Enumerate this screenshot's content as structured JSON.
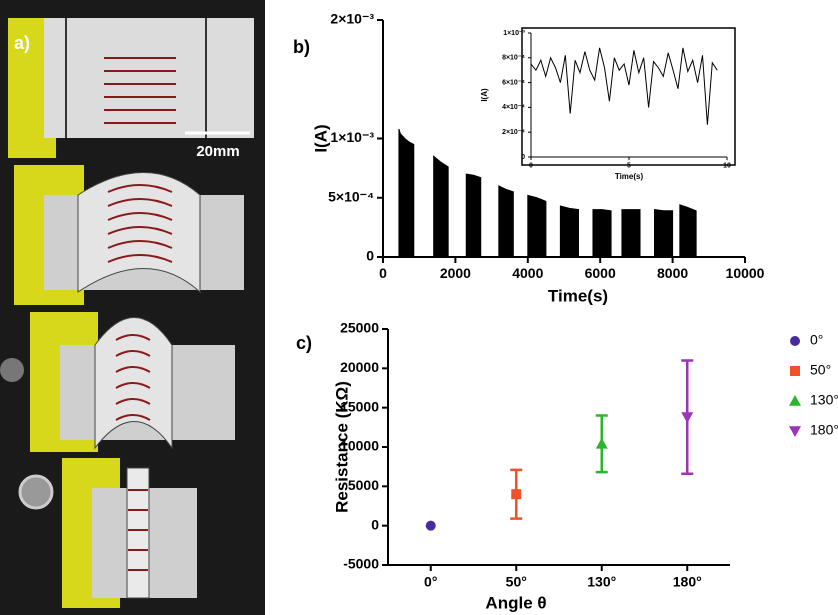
{
  "photo_panel": {
    "label": "a)",
    "scale_bar": "20mm"
  },
  "chart_data": [
    {
      "type": "area",
      "panel_label": "b)",
      "xlabel": "Time(s)",
      "ylabel": "I(A)",
      "color": "#000000",
      "xlim": [
        0,
        10000
      ],
      "xticks": [
        0,
        2000,
        4000,
        6000,
        8000,
        10000
      ],
      "ylim": [
        0,
        0.002
      ],
      "yticks": [
        0,
        {
          "value": 0.0005,
          "label": "5×10⁻⁴"
        },
        {
          "value": 0.001,
          "label": "1×10⁻³"
        },
        {
          "value": 0.002,
          "label": "2×10⁻³"
        }
      ],
      "x": [
        440,
        480,
        600,
        720,
        850,
        null,
        1400,
        1600,
        1800,
        null,
        2300,
        2500,
        2700,
        null,
        3200,
        3400,
        3600,
        null,
        4000,
        4250,
        4500,
        null,
        4900,
        5150,
        5400,
        null,
        5800,
        6050,
        6300,
        null,
        6600,
        6850,
        7100,
        null,
        7500,
        7750,
        8000,
        null,
        8200,
        8400,
        8650
      ],
      "values": [
        0.00108,
        0.00104,
        0.001,
        0.00097,
        0.00095,
        null,
        0.00085,
        0.0008,
        0.00076,
        null,
        0.0007,
        0.00069,
        0.00067,
        null,
        0.0006,
        0.00057,
        0.00055,
        null,
        0.00052,
        0.0005,
        0.00047,
        null,
        0.00043,
        0.00041,
        0.0004,
        null,
        0.0004,
        0.0004,
        0.00039,
        null,
        0.0004,
        0.0004,
        0.0004,
        null,
        0.0004,
        0.00039,
        0.00039,
        null,
        0.00044,
        0.00042,
        0.00039
      ]
    },
    {
      "type": "line",
      "xlabel": "Time(s)",
      "ylabel": "I(A)",
      "color": "#000000",
      "xlim": [
        0,
        10
      ],
      "xticks": [
        0,
        5,
        10
      ],
      "ylim": [
        0,
        0.001
      ],
      "yticks": [
        0,
        {
          "value": 0.0002,
          "label": "2×10⁻⁴"
        },
        {
          "value": 0.0004,
          "label": "4×10⁻⁴"
        },
        {
          "value": 0.0006,
          "label": "6×10⁻⁴"
        },
        {
          "value": 0.0008,
          "label": "8×10⁻⁴"
        },
        {
          "value": 0.001,
          "label": "1×10⁻³"
        }
      ],
      "x": [
        0,
        0.25,
        0.5,
        0.75,
        1,
        1.25,
        1.5,
        1.75,
        2,
        2.25,
        2.5,
        2.75,
        3,
        3.25,
        3.5,
        3.75,
        4,
        4.25,
        4.5,
        4.75,
        5,
        5.25,
        5.5,
        5.75,
        6,
        6.25,
        6.5,
        6.75,
        7,
        7.25,
        7.5,
        7.75,
        8,
        8.25,
        8.5,
        8.75,
        9,
        9.25,
        9.5
      ],
      "values": [
        0.00075,
        0.0007,
        0.00078,
        0.00065,
        0.0008,
        0.00072,
        0.0006,
        0.00082,
        0.00035,
        0.00078,
        0.00068,
        0.00085,
        0.0007,
        0.00062,
        0.00088,
        0.00072,
        0.00045,
        0.0008,
        0.0007,
        0.00075,
        0.00058,
        0.00086,
        0.00068,
        0.0008,
        0.0004,
        0.00077,
        0.00072,
        0.00065,
        0.00084,
        0.0007,
        0.00055,
        0.00088,
        0.00069,
        0.00078,
        0.0006,
        0.00082,
        0.00026,
        0.00076,
        0.0007
      ]
    },
    {
      "type": "scatter",
      "panel_label": "c)",
      "xlabel": "Angle θ",
      "ylabel": "Resistance (KΩ)",
      "legend": "right",
      "categories": [
        "0°",
        "50°",
        "130°",
        "180°"
      ],
      "ylim": [
        -5000,
        25000
      ],
      "yticks": [
        -5000,
        0,
        5000,
        10000,
        15000,
        20000,
        25000
      ],
      "series": [
        {
          "name": "0°",
          "color": "#4b2a9a",
          "marker": "circle",
          "values": [
            0,
            null,
            null,
            null
          ],
          "errors": [
            null,
            null,
            null,
            null
          ]
        },
        {
          "name": "50°",
          "color": "#f0502a",
          "marker": "square",
          "values": [
            null,
            4000,
            null,
            null
          ],
          "errors": [
            null,
            3100,
            null,
            null
          ]
        },
        {
          "name": "130°",
          "color": "#2cb52c",
          "marker": "triangle-up",
          "values": [
            null,
            null,
            10400,
            null
          ],
          "errors": [
            null,
            null,
            3600,
            null
          ]
        },
        {
          "name": "180°",
          "color": "#9b34b5",
          "marker": "triangle-down",
          "values": [
            null,
            null,
            null,
            13800
          ],
          "errors": [
            null,
            null,
            null,
            7200
          ]
        }
      ]
    }
  ]
}
